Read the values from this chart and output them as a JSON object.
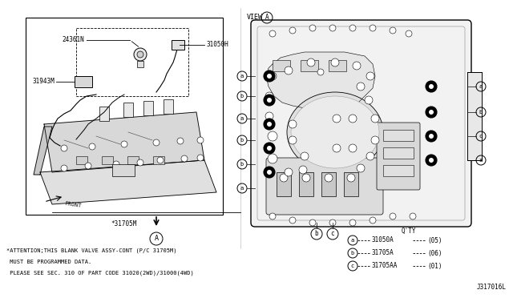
{
  "background_color": "#ffffff",
  "fig_width": 6.4,
  "fig_height": 3.72,
  "dpi": 100,
  "title_diagram_id": "J317016L",
  "attention_lines": [
    "*ATTENTION;THIS BLANK VALVE ASSY-CONT (P/C 31705M)",
    " MUST BE PROGRAMMED DATA.",
    " PLEASE SEE SEC. 310 OF PART CODE 31020(2WD)/31000(4WD)"
  ],
  "qty_label": "Q'TY",
  "parts": [
    {
      "circle": "a",
      "part_num": "31050A",
      "qty": "(05)"
    },
    {
      "circle": "b",
      "part_num": "31705A",
      "qty": "(06)"
    },
    {
      "circle": "c",
      "part_num": "31705AA",
      "qty": "(01)"
    }
  ]
}
